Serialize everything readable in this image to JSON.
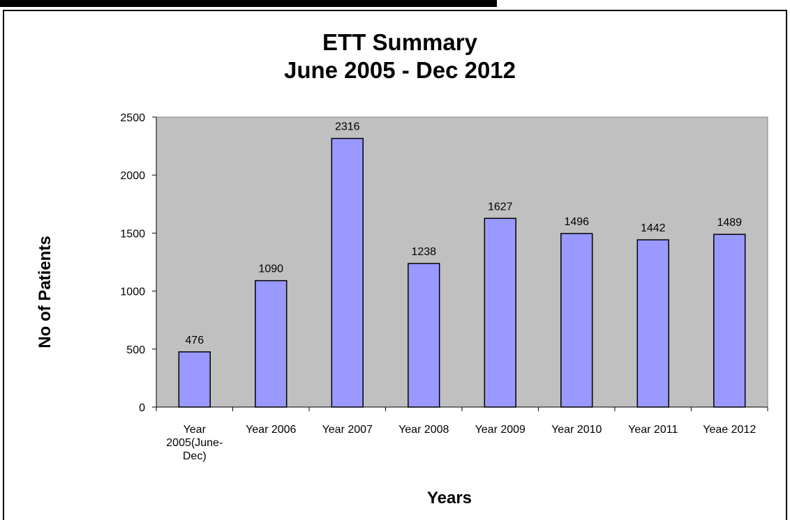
{
  "chart_data": {
    "type": "bar",
    "title": "ETT Summary",
    "subtitle": "June 2005 - Dec 2012",
    "xlabel": "Years",
    "ylabel": "No of Patients",
    "categories": [
      [
        "Year",
        "2005(June-",
        "Dec)"
      ],
      [
        "Year 2006"
      ],
      [
        "Year 2007"
      ],
      [
        "Year 2008"
      ],
      [
        "Year 2009"
      ],
      [
        "Year 2010"
      ],
      [
        "Year 2011"
      ],
      [
        "Yeae 2012"
      ]
    ],
    "values": [
      476,
      1090,
      2316,
      1238,
      1627,
      1496,
      1442,
      1489
    ],
    "data_labels": [
      "476",
      "1090",
      "2316",
      "1238",
      "1627",
      "1496",
      "1442",
      "1489"
    ],
    "ylim": [
      0,
      2500
    ],
    "yticks": [
      0,
      500,
      1000,
      1500,
      2000,
      2500
    ],
    "ytick_labels": [
      "0",
      "500",
      "1000",
      "1500",
      "2000",
      "2500"
    ],
    "grid": false,
    "legend": "none",
    "colors": {
      "bar_fill": "#9999ff",
      "bar_stroke": "#000000",
      "plot_background": "#c0c0c0",
      "plot_border": "#808080"
    }
  }
}
